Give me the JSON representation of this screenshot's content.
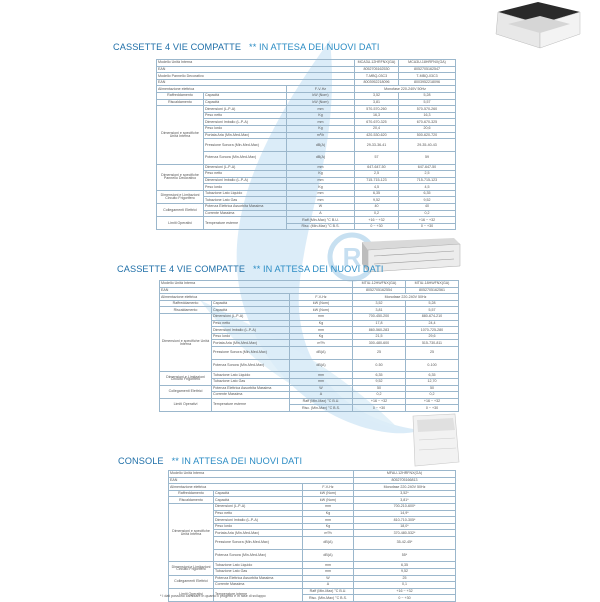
{
  "colors": {
    "title": "#2b8cc4",
    "watermark": "#cfe6f5",
    "border": "#9bb7cc"
  },
  "sections": [
    {
      "title_a": "CASSETTE 4 VIE COMPATTE",
      "title_b": "   ** IN ATTESA DEI NUOVI DATI",
      "image": "cassette-unit-image",
      "header": [
        {
          "label": "Modello Unità Interna",
          "values": [
            "MCA3U-12HRFNX(GA)",
            "MCA3U-18HRFNX(GA)"
          ]
        },
        {
          "label": "EAN",
          "values": [
            "8052705162530",
            "8052705162547"
          ]
        },
        {
          "label": "Modello Pannello Decorativo",
          "values": [
            "T-MBQ-03C3",
            "T-MBQ-03C3"
          ]
        },
        {
          "label": "EAN",
          "values": [
            "8003952218096",
            "8003952218096"
          ]
        }
      ],
      "power": {
        "label": "Alimentazione elettrica",
        "unit": "F-V-Hz",
        "value": "Monofase 220-240V 50Hz"
      },
      "simple": [
        {
          "group": "Raffreddamento",
          "label": "Capacità",
          "unit": "kW  (Nom)",
          "values": [
            "3,52",
            "5,28"
          ]
        },
        {
          "group": "Riscaldamento",
          "label": "Capacità",
          "unit": "kW  (Nom)",
          "values": [
            "3,81",
            "5,57"
          ]
        }
      ],
      "groups": [
        {
          "label": "Dimensioni e specifiche Unità Interna",
          "rows": [
            {
              "label": "Dimensioni (L-P-A)",
              "unit": "mm",
              "values": [
                "570-570-260",
                "570-570-260"
              ]
            },
            {
              "label": "Peso netto",
              "unit": "Kg",
              "values": [
                "16,3",
                "16,3"
              ]
            },
            {
              "label": "Dimensioni Imballo (L-P-A)",
              "unit": "mm",
              "values": [
                "670-670-325",
                "670-670-325"
              ]
            },
            {
              "label": "Peso lordo",
              "unit": "Kg",
              "values": [
                "20,4",
                "20,6"
              ]
            },
            {
              "label": "Portata Aria (Min-Med-Max)",
              "unit": "m³/h",
              "values": [
                "420-530-620",
                "500-620-720"
              ]
            },
            {
              "label": "Pressione Sonora (Min-Med-Max)",
              "unit": "dB(A)",
              "values": [
                "29-33-36-41",
                "29-35-40-43"
              ],
              "tall": true
            },
            {
              "label": "Potenza Sonora (Min-Med-Max)",
              "unit": "dB(A)",
              "values": [
                "57",
                "59"
              ],
              "tall": true
            }
          ]
        },
        {
          "label": "Dimensioni e specifiche Pannello Decorativo",
          "rows": [
            {
              "label": "Dimensioni (L-P-A)",
              "unit": "mm",
              "values": [
                "647-647-50",
                "647-647-50"
              ]
            },
            {
              "label": "Peso netto",
              "unit": "Kg",
              "values": [
                "2,5",
                "2,5"
              ]
            },
            {
              "label": "Dimensioni Imballo (L-P-A)",
              "unit": "mm",
              "values": [
                "715-715-123",
                "715-715-123"
              ]
            },
            {
              "label": "Peso lordo",
              "unit": "Kg",
              "values": [
                "4,5",
                "4,5"
              ]
            }
          ]
        },
        {
          "label": "Dimensioni e Limitazioni Circuito Frigorifero",
          "rows": [
            {
              "label": "Tubazione Lato Liquido",
              "unit": "mm",
              "values": [
                "6,35",
                "6,35"
              ]
            },
            {
              "label": "Tubazione Lato Gas",
              "unit": "mm",
              "values": [
                "9,52",
                "9,52"
              ]
            }
          ]
        },
        {
          "label": "Collegamenti Elettrici",
          "rows": [
            {
              "label": "Potenza Elettrica Assorbita Massima",
              "unit": "W",
              "values": [
                "40",
                "40"
              ]
            },
            {
              "label": "Corrente Massima",
              "unit": "A",
              "values": [
                "0,2",
                "0,2"
              ]
            }
          ]
        },
        {
          "label": "Limiti Operativi",
          "rows": [
            {
              "label": "Temperature esterne",
              "sub": [
                {
                  "unit": "Raff (Min-Max) °C B.U.",
                  "values": [
                    "+16 ~ +32",
                    "+16 ~ +32"
                  ]
                },
                {
                  "unit": "Risc. (Min-Max) °C B.S.",
                  "values": [
                    "0 ~ +30",
                    "0 ~ +30"
                  ]
                }
              ]
            }
          ]
        }
      ]
    },
    {
      "title_a": "CASSETTE 4 VIE COMPATTE",
      "title_b": "   ** IN ATTESA DEI NUOVI DATI",
      "image": "duct-unit-image",
      "header": [
        {
          "label": "Modello Unità Interna",
          "values": [
            "MTIU-12HWFNX(GA)",
            "MTIU-18HWFNX(GA)"
          ]
        },
        {
          "label": "EAN",
          "values": [
            "8052705162554",
            "8052705162561"
          ]
        }
      ],
      "power": {
        "label": "Alimentazione elettrica",
        "unit": "F-V-Hz",
        "value": "Monofase 220-240V 50Hz"
      },
      "simple": [
        {
          "group": "Raffreddamento",
          "label": "Capacità",
          "unit": "kW  (Nom)",
          "values": [
            "3,52",
            "5,28"
          ]
        },
        {
          "group": "Riscaldamento",
          "label": "Capacità",
          "unit": "kW  (Nom)",
          "values": [
            "3,81",
            "5,57"
          ]
        }
      ],
      "groups": [
        {
          "label": "Dimensioni e specifiche Unità Interna",
          "rows": [
            {
              "label": "Dimensioni (L-P-A)",
              "unit": "mm",
              "values": [
                "700-450-200",
                "880-674-210"
              ]
            },
            {
              "label": "Peso netto",
              "unit": "Kg",
              "values": [
                "17,8",
                "24,4"
              ]
            },
            {
              "label": "Dimensioni Imballo (L-P-A)",
              "unit": "mm",
              "values": [
                "860-560-283",
                "1070-725-280"
              ]
            },
            {
              "label": "Peso lordo",
              "unit": "Kg",
              "values": [
                "21,5",
                "29,6"
              ]
            },
            {
              "label": "Portata Aria (Min-Med-Max)",
              "unit": "m³/h",
              "values": [
                "300-480-600",
                "515-730-811"
              ]
            },
            {
              "label": "Pressione Sonora (Min-Med-Max)",
              "unit": "dB(A)",
              "values": [
                "25",
                "25"
              ],
              "tall": true
            },
            {
              "label": "Potenza Sonora (Min-Med-Max)",
              "unit": "dB(A)",
              "values": [
                "0-50",
                "0-100"
              ],
              "tall": true
            }
          ]
        },
        {
          "label": "Dimensioni e Limitazioni Circuito Frigorifero",
          "rows": [
            {
              "label": "Tubazione Lato Liquido",
              "unit": "mm",
              "values": [
                "6,35",
                "6,35"
              ]
            },
            {
              "label": "Tubazione Lato Gas",
              "unit": "mm",
              "values": [
                "9,52",
                "12,70"
              ]
            }
          ]
        },
        {
          "label": "Collegamenti Elettrici",
          "rows": [
            {
              "label": "Potenza Elettrica Assorbita Massima",
              "unit": "W",
              "values": [
                "50",
                "50"
              ]
            },
            {
              "label": "Corrente Massima",
              "unit": "A",
              "values": [
                "0,2",
                "0,2"
              ]
            }
          ]
        },
        {
          "label": "Limiti Operativi",
          "rows": [
            {
              "label": "Temperature esterne",
              "sub": [
                {
                  "unit": "Raff (Min-Max) °C B.U.",
                  "values": [
                    "+16 ~ +32",
                    "+16 ~ +32"
                  ]
                },
                {
                  "unit": "Risc. (Min-Max) °C B.S.",
                  "values": [
                    "0 ~ +30",
                    "0 ~ +30"
                  ]
                }
              ]
            }
          ]
        }
      ]
    },
    {
      "title_a": "CONSOLE",
      "title_b": "   ** IN ATTESA DEI NUOVI DATI",
      "image": "console-unit-image",
      "header": [
        {
          "label": "Modello Unità Interna",
          "values": [
            "MFAU-12HRFNX(GA)"
          ]
        },
        {
          "label": "EAN",
          "values": [
            "8052705166813"
          ]
        }
      ],
      "power": {
        "label": "Alimentazione elettrica",
        "unit": "F-V-Hz",
        "value": "Monofase 220-240V 50Hz"
      },
      "simple": [
        {
          "group": "Raffreddamento",
          "label": "Capacità",
          "unit": "kW  (Nom)",
          "values": [
            "3,52*"
          ]
        },
        {
          "group": "Riscaldamento",
          "label": "Capacità",
          "unit": "kW  (Nom)",
          "values": [
            "3,81*"
          ]
        }
      ],
      "groups": [
        {
          "label": "Dimensioni e specifiche Unità Interna",
          "rows": [
            {
              "label": "Dimensioni (L-P-A)",
              "unit": "mm",
              "values": [
                "700-210-600*"
              ]
            },
            {
              "label": "Peso netto",
              "unit": "Kg",
              "values": [
                "14,9*"
              ]
            },
            {
              "label": "Dimensioni Imballo (L-P-A)",
              "unit": "mm",
              "values": [
                "810-710-305*"
              ]
            },
            {
              "label": "Peso lordo",
              "unit": "Kg",
              "values": [
                "18,0*"
              ]
            },
            {
              "label": "Portata Aria (Min-Med-Max)",
              "unit": "m³/h",
              "values": [
                "370-480-532*"
              ]
            },
            {
              "label": "Pressione Sonora (Min-Med-Max)",
              "unit": "dB(A)",
              "values": [
                "35-42-45*"
              ],
              "tall": true
            },
            {
              "label": "Potenza Sonora (Min-Med-Max)",
              "unit": "dB(A)",
              "values": [
                "55*"
              ],
              "tall": true
            }
          ]
        },
        {
          "label": "Dimensioni e Limitazioni Circuito Frigorifero",
          "rows": [
            {
              "label": "Tubazione Lato Liquido",
              "unit": "mm",
              "values": [
                "6,35"
              ]
            },
            {
              "label": "Tubazione Lato Gas",
              "unit": "mm",
              "values": [
                "9,52"
              ]
            }
          ]
        },
        {
          "label": "Collegamenti Elettrici",
          "rows": [
            {
              "label": "Potenza Elettrica Assorbita Massima",
              "unit": "W",
              "values": [
                "25"
              ]
            },
            {
              "label": "Corrente Massima",
              "unit": "A",
              "values": [
                "0,1"
              ]
            }
          ]
        },
        {
          "label": "Limiti Operativi",
          "rows": [
            {
              "label": "Temperature interne",
              "sub": [
                {
                  "unit": "Raff (Min-Max) °C B.U.",
                  "values": [
                    "+16 ~ +32"
                  ]
                },
                {
                  "unit": "Risc. (Min-Max) °C B.S.",
                  "values": [
                    "0 ~ +30"
                  ]
                }
              ]
            }
          ]
        }
      ],
      "footnote": "* I dati possono cambiare in quanto il progetto è in fase di sviluppo"
    }
  ]
}
